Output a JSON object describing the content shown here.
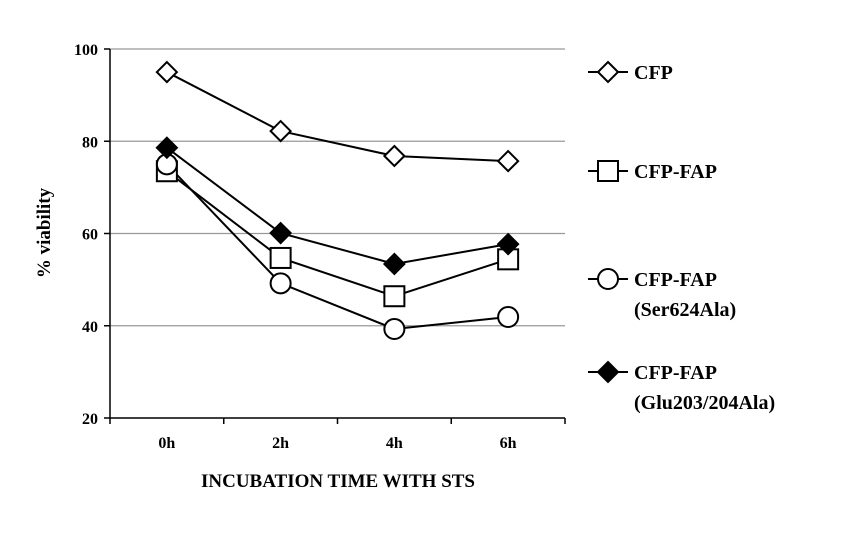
{
  "chart_data": {
    "type": "line",
    "title": "",
    "xlabel": "INCUBATION TIME WITH STS",
    "ylabel": "% viability",
    "categories": [
      "0h",
      "2h",
      "4h",
      "6h"
    ],
    "ylim": [
      20,
      100
    ],
    "yticks": [
      20,
      40,
      60,
      80,
      100
    ],
    "grid": true,
    "legend_placement": "right",
    "series": [
      {
        "name": "CFP",
        "marker": "open-diamond",
        "values": [
          95,
          82.2,
          76.8,
          75.7
        ]
      },
      {
        "name": "CFP-FAP",
        "marker": "open-square",
        "values": [
          73.5,
          54.7,
          46.4,
          54.4
        ]
      },
      {
        "name": "CFP-FAP (Ser624Ala)",
        "name_lines": [
          "CFP-FAP",
          "(Ser624Ala)"
        ],
        "marker": "open-circle",
        "values": [
          75,
          49.2,
          39.3,
          41.9
        ]
      },
      {
        "name": "CFP-FAP (Glu203/204Ala)",
        "name_lines": [
          "CFP-FAP",
          "(Glu203/204Ala)"
        ],
        "marker": "filled-diamond",
        "values": [
          78.6,
          60.1,
          53.4,
          57.7
        ]
      }
    ]
  }
}
